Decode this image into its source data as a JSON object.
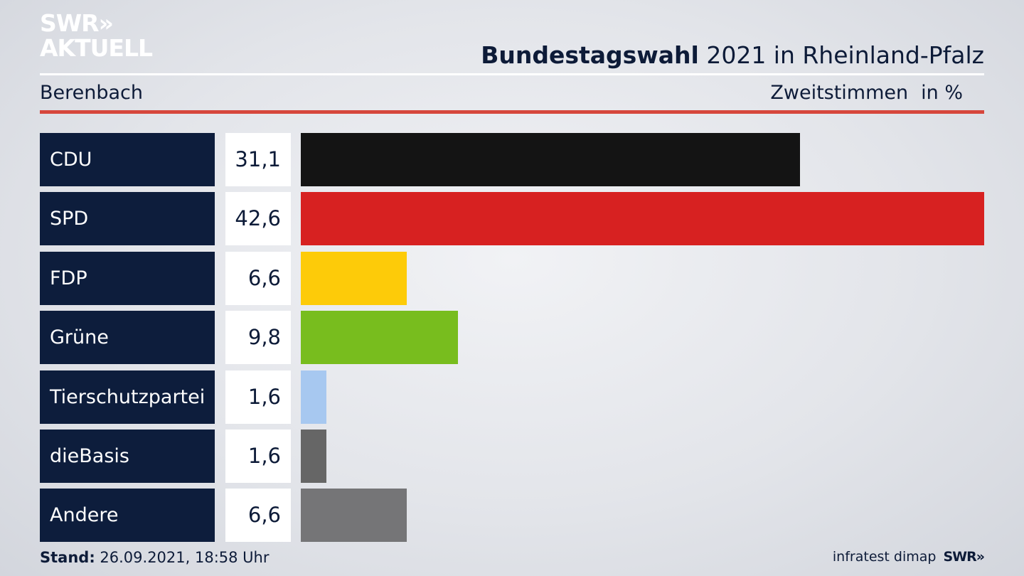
{
  "logo": {
    "line1": "SWR»",
    "line2": "AKTUELL"
  },
  "header": {
    "title_bold": "Bundestagswahl",
    "title_rest": " 2021 in Rheinland-Pfalz",
    "location": "Berenbach",
    "measure": "Zweitstimmen",
    "unit": "in %"
  },
  "chart_data": {
    "type": "bar",
    "orientation": "horizontal",
    "categories": [
      "CDU",
      "SPD",
      "FDP",
      "Grüne",
      "Tierschutzpartei",
      "dieBasis",
      "Andere"
    ],
    "values": [
      31.1,
      42.6,
      6.6,
      9.8,
      1.6,
      1.6,
      6.6
    ],
    "value_labels": [
      "31,1",
      "42,6",
      "6,6",
      "9,8",
      "1,6",
      "1,6",
      "6,6"
    ],
    "colors": [
      "#141414",
      "#d72121",
      "#fdcb09",
      "#78bd1e",
      "#a7c8f0",
      "#666666",
      "#757577"
    ],
    "xlim": [
      0,
      42.6
    ],
    "grid": false
  },
  "footer": {
    "stand_label": "Stand:",
    "stand_value": " 26.09.2021, 18:58 Uhr",
    "source": "infratest dimap",
    "brand": "SWR»"
  }
}
